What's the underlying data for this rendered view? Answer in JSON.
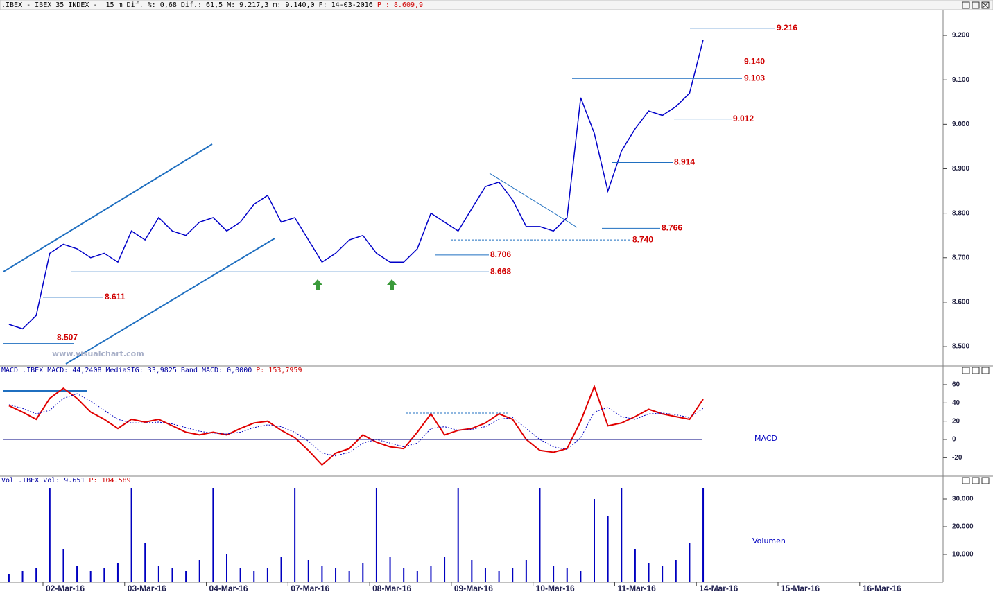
{
  "header": {
    "title": ".IBEX - IBEX 35 INDEX -  15 m Dif. %: 0,68 Dif.: 61,5 M: 9.217,3 m: 9.140,0 F: 14-03-2016",
    "title_extra": "P : 8.609,9"
  },
  "chart_data": [
    {
      "type": "line",
      "color": "#0000c8",
      "watermark": "www.visualchart.com",
      "values": [
        8.55,
        8.54,
        8.57,
        8.71,
        8.73,
        8.72,
        8.7,
        8.71,
        8.69,
        8.76,
        8.74,
        8.79,
        8.76,
        8.75,
        8.78,
        8.79,
        8.76,
        8.78,
        8.82,
        8.84,
        8.78,
        8.79,
        8.74,
        8.69,
        8.71,
        8.74,
        8.75,
        8.71,
        8.69,
        8.69,
        8.72,
        8.8,
        8.78,
        8.76,
        8.81,
        8.86,
        8.87,
        8.83,
        8.77,
        8.77,
        8.76,
        8.79,
        9.06,
        8.98,
        8.85,
        8.94,
        8.99,
        9.03,
        9.02,
        9.04,
        9.07,
        9.19,
        null,
        null,
        null,
        null,
        null,
        null,
        null,
        null,
        null,
        null,
        null,
        null,
        null,
        null,
        null,
        null,
        null
      ],
      "levels": [
        {
          "value": 9.216,
          "label": "9.216"
        },
        {
          "value": 9.14,
          "label": "9.140"
        },
        {
          "value": 9.103,
          "label": "9.103"
        },
        {
          "value": 9.012,
          "label": "9.012"
        },
        {
          "value": 8.914,
          "label": "8.914"
        },
        {
          "value": 8.766,
          "label": "8.766"
        },
        {
          "value": 8.74,
          "label": "8.740"
        },
        {
          "value": 8.706,
          "label": "8.706"
        },
        {
          "value": 8.668,
          "label": "8.668"
        },
        {
          "value": 8.611,
          "label": "8.611"
        },
        {
          "value": 8.507,
          "label": "8.507"
        }
      ],
      "ylim": [
        8.458,
        9.264
      ],
      "yticks": [
        {
          "value": 8.5,
          "label": "8.500"
        },
        {
          "value": 8.6,
          "label": "8.600"
        },
        {
          "value": 8.7,
          "label": "8.700"
        },
        {
          "value": 8.8,
          "label": "8.800"
        },
        {
          "value": 8.9,
          "label": "8.900"
        },
        {
          "value": 9.0,
          "label": "9.000"
        },
        {
          "value": 9.1,
          "label": "9.100"
        },
        {
          "value": 9.2,
          "label": "9.200"
        }
      ]
    },
    {
      "type": "line",
      "title": "MACD_.IBEX MACD: 44,2408 MediaSIG: 33,9825 Band_MACD: 0,0000",
      "title_extra": "P: 153,7959",
      "label": "MACD",
      "series": [
        {
          "color": "#e00000",
          "values": [
            37,
            30,
            22,
            45,
            56,
            45,
            30,
            22,
            12,
            22,
            19,
            22,
            15,
            8,
            5,
            8,
            5,
            12,
            18,
            20,
            10,
            2,
            -12,
            -28,
            -15,
            -10,
            5,
            -3,
            -8,
            -10,
            8,
            28,
            5,
            10,
            12,
            18,
            28,
            22,
            0,
            -12,
            -14,
            -10,
            20,
            58,
            15,
            18,
            25,
            33,
            28,
            25,
            22,
            44,
            null,
            null,
            null,
            null,
            null,
            null,
            null,
            null,
            null,
            null,
            null,
            null,
            null,
            null,
            null,
            null,
            null
          ]
        },
        {
          "color": "#0000c0",
          "values": [
            38,
            34,
            28,
            32,
            45,
            50,
            42,
            32,
            22,
            18,
            18,
            19,
            17,
            13,
            9,
            7,
            6,
            8,
            13,
            16,
            14,
            8,
            -2,
            -15,
            -18,
            -14,
            -4,
            0,
            -4,
            -8,
            -4,
            12,
            14,
            10,
            11,
            14,
            22,
            24,
            12,
            0,
            -8,
            -11,
            2,
            30,
            35,
            25,
            22,
            28,
            29,
            27,
            24,
            34,
            null,
            null,
            null,
            null,
            null,
            null,
            null,
            null,
            null,
            null,
            null,
            null,
            null,
            null,
            null,
            null,
            null
          ]
        }
      ],
      "ylim": [
        -38.7,
        70.6
      ],
      "yticks": [
        60,
        40,
        20,
        0,
        -20
      ]
    },
    {
      "type": "bar",
      "title": "Vol_.IBEX Vol: 9.651",
      "title_extra": "P: 104.589",
      "label": "Volumen",
      "color": "#0000c0",
      "categories": [
        null,
        null,
        null,
        "02-Mar-16",
        null,
        null,
        null,
        null,
        null,
        "03-Mar-16",
        null,
        null,
        null,
        null,
        null,
        "04-Mar-16",
        null,
        null,
        null,
        null,
        null,
        "07-Mar-16",
        null,
        null,
        null,
        null,
        null,
        "08-Mar-16",
        null,
        null,
        null,
        null,
        null,
        "09-Mar-16",
        null,
        null,
        null,
        null,
        null,
        "10-Mar-16",
        null,
        null,
        null,
        null,
        null,
        "11-Mar-16",
        null,
        null,
        null,
        null,
        null,
        "14-Mar-16",
        null,
        null,
        null,
        null,
        null,
        "15-Mar-16",
        null,
        null,
        null,
        null,
        null,
        "16-Mar-16",
        null,
        null,
        null,
        null,
        null
      ],
      "values": [
        3000,
        4000,
        5000,
        34000,
        12000,
        6000,
        4000,
        5000,
        7000,
        34000,
        14000,
        6000,
        5000,
        4000,
        8000,
        34000,
        10000,
        5000,
        4000,
        5000,
        9000,
        34000,
        8000,
        6000,
        5000,
        4000,
        7000,
        34000,
        9000,
        5000,
        4000,
        6000,
        9000,
        34000,
        8000,
        5000,
        4000,
        5000,
        8000,
        34000,
        6000,
        5000,
        4000,
        30000,
        24000,
        34000,
        12000,
        7000,
        6000,
        8000,
        14000,
        34000,
        null,
        null,
        null,
        null,
        null,
        null,
        null,
        null,
        null,
        null,
        null,
        null,
        null,
        null,
        null,
        null,
        null
      ],
      "ylim": [
        0,
        35000
      ],
      "yticks": [
        {
          "value": 10000,
          "label": "10.000"
        },
        {
          "value": 20000,
          "label": "20.000"
        },
        {
          "value": 30000,
          "label": "30.000"
        }
      ]
    }
  ]
}
